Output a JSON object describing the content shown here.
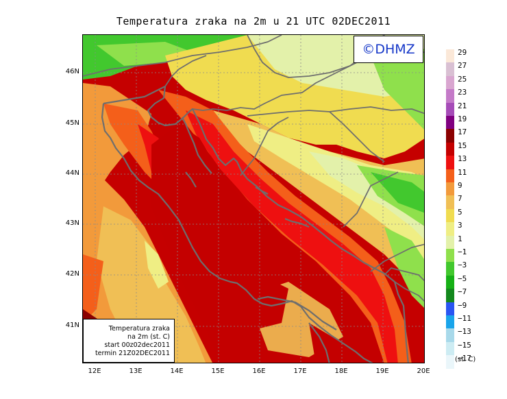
{
  "title": "Temperatura zraka na 2m u 21 UTC 02DEC2011",
  "logo": "©DHMZ",
  "info": {
    "line1": "Temperatura zraka",
    "line2": "na 2m (st. C)",
    "line3": "start 00z02dec2011",
    "line4": "termin 21Z02DEC2011"
  },
  "lat_labels": [
    "46N",
    "45N",
    "44N",
    "43N",
    "42N",
    "41N"
  ],
  "lon_labels": [
    "12E",
    "13E",
    "14E",
    "15E",
    "16E",
    "17E",
    "18E",
    "19E",
    "20E"
  ],
  "legend": {
    "unit": "(st. C)",
    "labels": [
      "29",
      "27",
      "25",
      "23",
      "21",
      "19",
      "17",
      "15",
      "13",
      "11",
      "9",
      "7",
      "5",
      "3",
      "1",
      "−1",
      "−3",
      "−5",
      "−7",
      "−9",
      "−11",
      "−13",
      "−15",
      "−17"
    ],
    "colors": [
      "#fbe8d8",
      "#d9c0d3",
      "#d9a6d0",
      "#c47ac8",
      "#a64cb8",
      "#800080",
      "#8b0000",
      "#c40000",
      "#ee1010",
      "#f45f1a",
      "#f29a3b",
      "#f0bf55",
      "#f0dc50",
      "#efee84",
      "#e3f1aa",
      "#8fe04c",
      "#42c82e",
      "#16b016",
      "#13881d",
      "#2a55f2",
      "#19a4ea",
      "#a8d9ea",
      "#cdecf3",
      "#eaf6fa"
    ]
  }
}
